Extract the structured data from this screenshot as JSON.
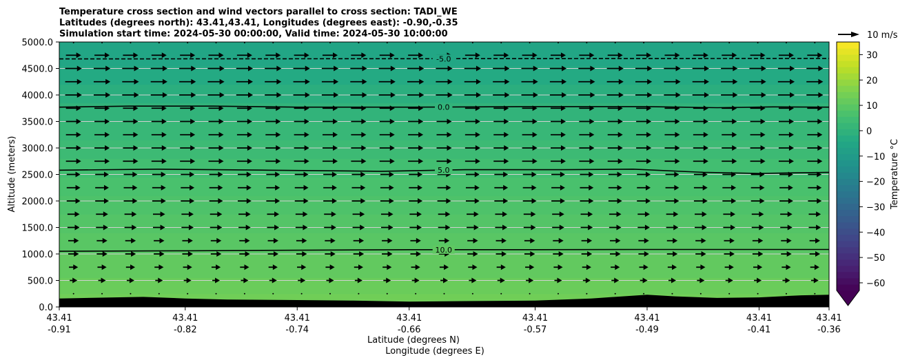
{
  "chart_data": {
    "type": "heatmap",
    "title_lines": [
      "Temperature cross section and wind vectors parallel to cross section: TADI_WE",
      "Latitudes (degrees north): 43.41,43.41, Longitudes (degrees east): -0.90,-0.35",
      "Simulation start time: 2024-05-30 00:00:00, Valid time: 2024-05-30 10:00:00"
    ],
    "xlabel_line1": "Latitude (degrees N)",
    "xlabel_line2": "Longitude (degrees E)",
    "ylabel": "Altitude (meters)",
    "colorbar_label": "Temperature $^\\circ$C",
    "colorbar_label_text": "Temperature °C",
    "colorbar_ticks": [
      30,
      20,
      10,
      0,
      -10,
      -20,
      -30,
      -40,
      -50,
      -60
    ],
    "colorbar_ticks_text": [
      "30",
      "20",
      "10",
      "0",
      "−10",
      "−20",
      "−30",
      "−40",
      "−50",
      "−60"
    ],
    "colorbar_range": [
      -63,
      35
    ],
    "colorscale": "viridis",
    "wind_key_label": "10 m/s",
    "ylim": [
      0,
      5000
    ],
    "yticks": [
      0,
      500,
      1000,
      1500,
      2000,
      2500,
      3000,
      3500,
      4000,
      4500,
      5000
    ],
    "yticks_text": [
      "0.0",
      "500.0",
      "1000.0",
      "1500.0",
      "2000.0",
      "2500.0",
      "3000.0",
      "3500.0",
      "4000.0",
      "4500.0",
      "5000.0"
    ],
    "xlim": [
      -0.91,
      -0.36
    ],
    "xticks": [
      {
        "lat": "43.41",
        "lon": "-0.91",
        "value": -0.91
      },
      {
        "lat": "43.41",
        "lon": "-0.82",
        "value": -0.82
      },
      {
        "lat": "43.41",
        "lon": "-0.74",
        "value": -0.74
      },
      {
        "lat": "43.41",
        "lon": "-0.66",
        "value": -0.66
      },
      {
        "lat": "43.41",
        "lon": "-0.57",
        "value": -0.57
      },
      {
        "lat": "43.41",
        "lon": "-0.49",
        "value": -0.49
      },
      {
        "lat": "43.41",
        "lon": "-0.41",
        "value": -0.41
      },
      {
        "lat": "43.41",
        "lon": "-0.36",
        "value": -0.36
      }
    ],
    "temperature_bands": [
      {
        "bottom": 0,
        "top": 250,
        "temp": 13.5
      },
      {
        "bottom": 250,
        "top": 550,
        "temp": 12.5
      },
      {
        "bottom": 550,
        "top": 1000,
        "temp": 11
      },
      {
        "bottom": 1000,
        "top": 1400,
        "temp": 9.5
      },
      {
        "bottom": 1400,
        "top": 1750,
        "temp": 8.5
      },
      {
        "bottom": 1750,
        "top": 2100,
        "temp": 7.5
      },
      {
        "bottom": 2100,
        "top": 2450,
        "temp": 6.5
      },
      {
        "bottom": 2450,
        "top": 2800,
        "temp": 5
      },
      {
        "bottom": 2800,
        "top": 3150,
        "temp": 3.5
      },
      {
        "bottom": 3150,
        "top": 3500,
        "temp": 2
      },
      {
        "bottom": 3500,
        "top": 3850,
        "temp": 0.5
      },
      {
        "bottom": 3850,
        "top": 4200,
        "temp": -1.5
      },
      {
        "bottom": 4200,
        "top": 4550,
        "temp": -3.5
      },
      {
        "bottom": 4550,
        "top": 4850,
        "temp": -5
      },
      {
        "bottom": 4850,
        "top": 5000,
        "temp": -6
      }
    ],
    "contours": [
      {
        "level": -5.0,
        "label": "-5.0",
        "style": "dashed",
        "x": [
          -0.91,
          -0.36
        ],
        "y": [
          4680,
          4690
        ]
      },
      {
        "level": 0.0,
        "label": "0.0",
        "style": "solid",
        "x": [
          -0.91,
          -0.86,
          -0.8,
          -0.74,
          -0.66,
          -0.57,
          -0.49,
          -0.44,
          -0.4,
          -0.36
        ],
        "y": [
          3770,
          3790,
          3790,
          3770,
          3770,
          3780,
          3780,
          3760,
          3775,
          3770
        ]
      },
      {
        "level": 5.0,
        "label": "5.0",
        "style": "solid",
        "x": [
          -0.91,
          -0.84,
          -0.76,
          -0.68,
          -0.62,
          -0.55,
          -0.5,
          -0.45,
          -0.41,
          -0.36
        ],
        "y": [
          2580,
          2600,
          2580,
          2560,
          2590,
          2590,
          2600,
          2540,
          2520,
          2540
        ]
      },
      {
        "level": 10.0,
        "label": "10.0",
        "style": "solid",
        "x": [
          -0.91,
          -0.82,
          -0.74,
          -0.66,
          -0.57,
          -0.49,
          -0.41,
          -0.36
        ],
        "y": [
          1050,
          1060,
          1070,
          1080,
          1080,
          1085,
          1085,
          1085
        ]
      }
    ],
    "terrain": {
      "x": [
        -0.91,
        -0.87,
        -0.85,
        -0.82,
        -0.79,
        -0.74,
        -0.7,
        -0.66,
        -0.62,
        -0.57,
        -0.53,
        -0.49,
        -0.47,
        -0.44,
        -0.41,
        -0.38,
        -0.36
      ],
      "y": [
        160,
        180,
        190,
        160,
        140,
        130,
        120,
        100,
        110,
        120,
        160,
        230,
        200,
        170,
        180,
        220,
        230
      ]
    },
    "wind_vectors": {
      "rows": [
        {
          "z": 250,
          "u": 0.3
        },
        {
          "z": 500,
          "u": 5
        },
        {
          "z": 750,
          "u": 6
        },
        {
          "z": 1000,
          "u": 7
        },
        {
          "z": 1250,
          "u": 7
        },
        {
          "z": 1500,
          "u": 8
        },
        {
          "z": 1750,
          "u": 8
        },
        {
          "z": 2000,
          "u": 9
        },
        {
          "z": 2250,
          "u": 9
        },
        {
          "z": 2500,
          "u": 9
        },
        {
          "z": 2750,
          "u": 10
        },
        {
          "z": 3000,
          "u": 10
        },
        {
          "z": 3250,
          "u": 10
        },
        {
          "z": 3500,
          "u": 10
        },
        {
          "z": 3750,
          "u": 10
        },
        {
          "z": 4000,
          "u": 11
        },
        {
          "z": 4250,
          "u": 11
        },
        {
          "z": 4500,
          "u": 11
        },
        {
          "z": 4750,
          "u": 10
        },
        {
          "z": 5000,
          "u": 0.4
        }
      ],
      "columns": 27
    }
  }
}
